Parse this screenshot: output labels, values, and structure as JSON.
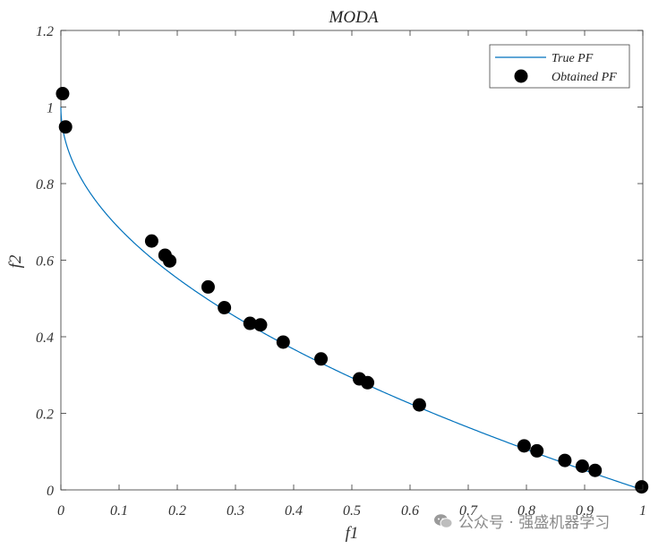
{
  "chart_data": {
    "type": "scatter",
    "title": "MODA",
    "xlabel": "f1",
    "ylabel": "f2",
    "xlim": [
      0,
      1
    ],
    "ylim": [
      0,
      1.2
    ],
    "xticks": [
      0,
      0.1,
      0.2,
      0.3,
      0.4,
      0.5,
      0.6,
      0.7,
      0.8,
      0.9,
      1
    ],
    "xtick_labels": [
      "0",
      "0.1",
      "0.2",
      "0.3",
      "0.4",
      "0.5",
      "0.6",
      "0.7",
      "0.8",
      "0.9",
      "1"
    ],
    "yticks": [
      0,
      0.2,
      0.4,
      0.6,
      0.8,
      1,
      1.2
    ],
    "ytick_labels": [
      "0",
      "0.2",
      "0.4",
      "0.6",
      "0.8",
      "1",
      "1.2"
    ],
    "grid": false,
    "legend_position": "top-right",
    "series": [
      {
        "name": "True PF",
        "kind": "line",
        "color": "#0072BD",
        "function": "1 - sqrt(x)"
      },
      {
        "name": "Obtained PF",
        "kind": "marker",
        "color": "#000000",
        "points": [
          [
            0.003,
            1.035
          ],
          [
            0.008,
            0.948
          ],
          [
            0.156,
            0.65
          ],
          [
            0.179,
            0.613
          ],
          [
            0.187,
            0.598
          ],
          [
            0.253,
            0.53
          ],
          [
            0.281,
            0.476
          ],
          [
            0.325,
            0.435
          ],
          [
            0.343,
            0.431
          ],
          [
            0.382,
            0.386
          ],
          [
            0.447,
            0.342
          ],
          [
            0.513,
            0.29
          ],
          [
            0.527,
            0.28
          ],
          [
            0.616,
            0.222
          ],
          [
            0.796,
            0.115
          ],
          [
            0.818,
            0.102
          ],
          [
            0.866,
            0.077
          ],
          [
            0.896,
            0.062
          ],
          [
            0.918,
            0.051
          ],
          [
            0.998,
            0.008
          ]
        ]
      }
    ]
  },
  "watermark": {
    "text": "公众号 · 强盛机器学习",
    "icon": "wechat-icon"
  }
}
